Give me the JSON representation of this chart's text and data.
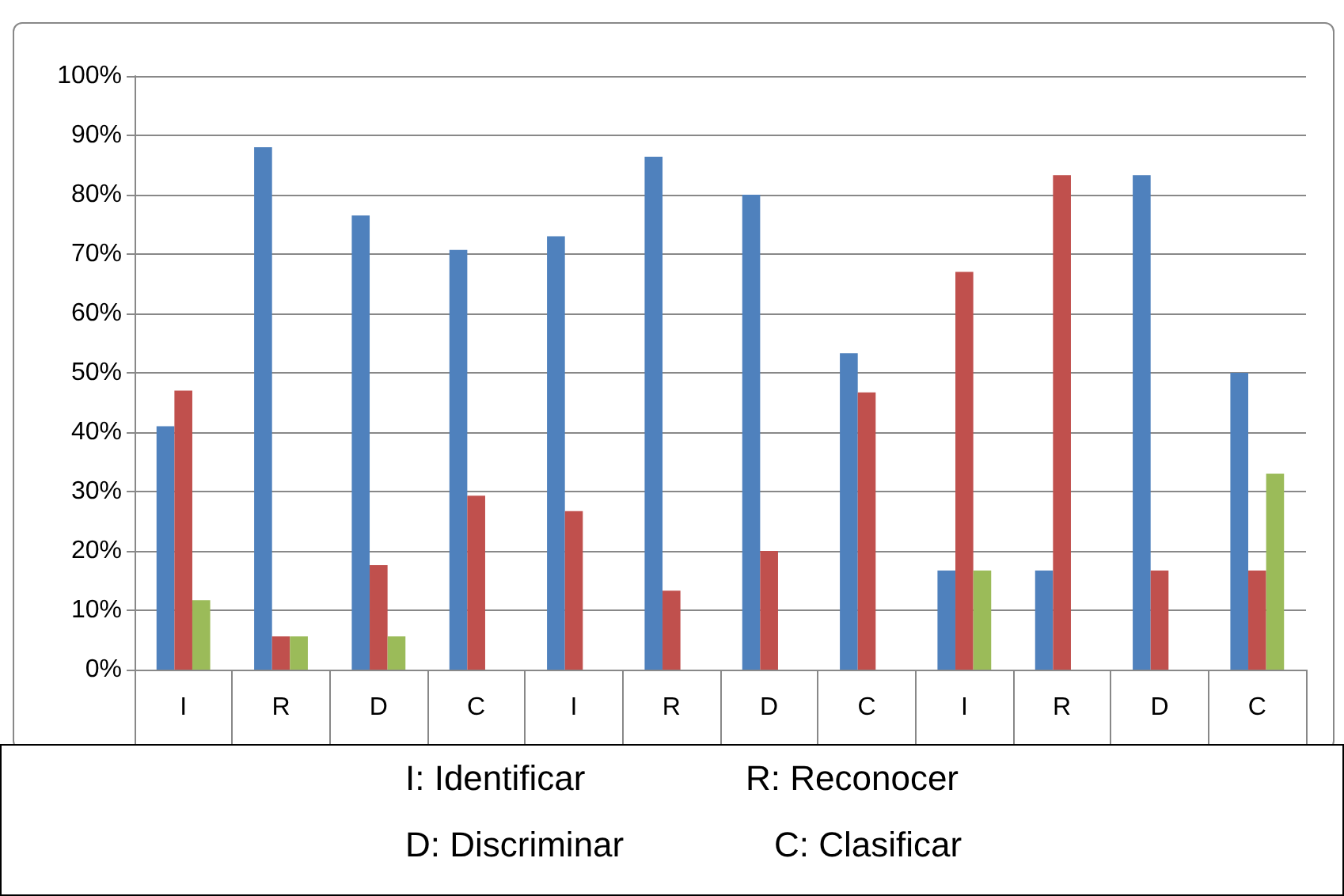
{
  "chart_data": {
    "type": "bar",
    "categories": [
      "I",
      "R",
      "D",
      "C",
      "I",
      "R",
      "D",
      "C",
      "I",
      "R",
      "D",
      "C"
    ],
    "series": [
      {
        "color": "#4f81bd",
        "values": [
          41,
          88,
          76.5,
          70.7,
          73,
          86.4,
          80,
          53.3,
          16.7,
          16.7,
          83.3,
          50
        ]
      },
      {
        "color": "#c0504d",
        "values": [
          47,
          5.6,
          17.6,
          29.3,
          26.7,
          13.3,
          20,
          46.7,
          67,
          83.3,
          16.7,
          16.7
        ]
      },
      {
        "color": "#9bbb59",
        "values": [
          11.7,
          5.6,
          5.6,
          0,
          0,
          0,
          0,
          0,
          16.7,
          0,
          0,
          33
        ]
      }
    ],
    "ylim": [
      0,
      100
    ],
    "yticks": [
      {
        "value": 0,
        "label": "0%"
      },
      {
        "value": 10,
        "label": "10%"
      },
      {
        "value": 20,
        "label": "20%"
      },
      {
        "value": 30,
        "label": "30%"
      },
      {
        "value": 40,
        "label": "40%"
      },
      {
        "value": 50,
        "label": "50%"
      },
      {
        "value": 60,
        "label": "60%"
      },
      {
        "value": 70,
        "label": "70%"
      },
      {
        "value": 80,
        "label": "80%"
      },
      {
        "value": 90,
        "label": "90%"
      },
      {
        "value": 100,
        "label": "100%"
      }
    ],
    "grid": "y",
    "annotations": [
      "I: Identificar",
      "R: Reconocer",
      "D: Discriminar",
      "C: Clasificar"
    ]
  }
}
